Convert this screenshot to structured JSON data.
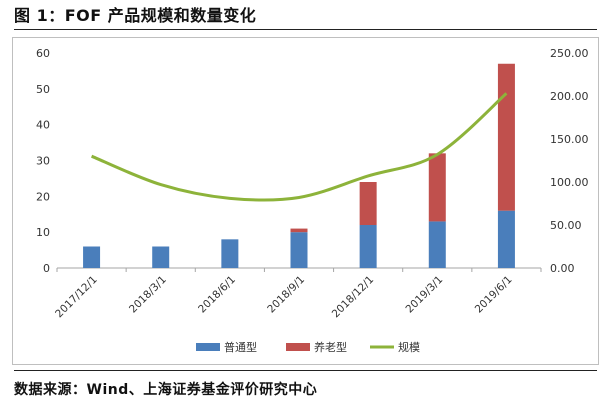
{
  "figure": {
    "title": "图 1：FOF 产品规模和数量变化",
    "source": "数据来源：Wind、上海证券基金评价研究中心"
  },
  "chart_data": {
    "type": "bar",
    "stacked": true,
    "categories": [
      "2017/12/1",
      "2018/3/1",
      "2018/6/1",
      "2018/9/1",
      "2018/12/1",
      "2019/3/1",
      "2019/6/1"
    ],
    "series": [
      {
        "name": "普通型",
        "kind": "bar",
        "axis": "left",
        "color": "#4a7ebb",
        "values": [
          6,
          6,
          8,
          10,
          12,
          13,
          16
        ]
      },
      {
        "name": "养老型",
        "kind": "bar",
        "axis": "left",
        "color": "#c0504d",
        "values": [
          0,
          0,
          0,
          1,
          12,
          19,
          41
        ]
      },
      {
        "name": "规模",
        "kind": "line",
        "axis": "right",
        "color": "#8db33a",
        "values": [
          130,
          97,
          81,
          82,
          107,
          132,
          203
        ]
      }
    ],
    "y_left": {
      "min": 0,
      "max": 60,
      "step": 10,
      "ticks": [
        "0",
        "10",
        "20",
        "30",
        "40",
        "50",
        "60"
      ]
    },
    "y_right": {
      "min": 0,
      "max": 250,
      "step": 50,
      "ticks": [
        "0.00",
        "50.00",
        "100.00",
        "150.00",
        "200.00",
        "250.00"
      ]
    },
    "grid": false,
    "legend": "bottom"
  }
}
